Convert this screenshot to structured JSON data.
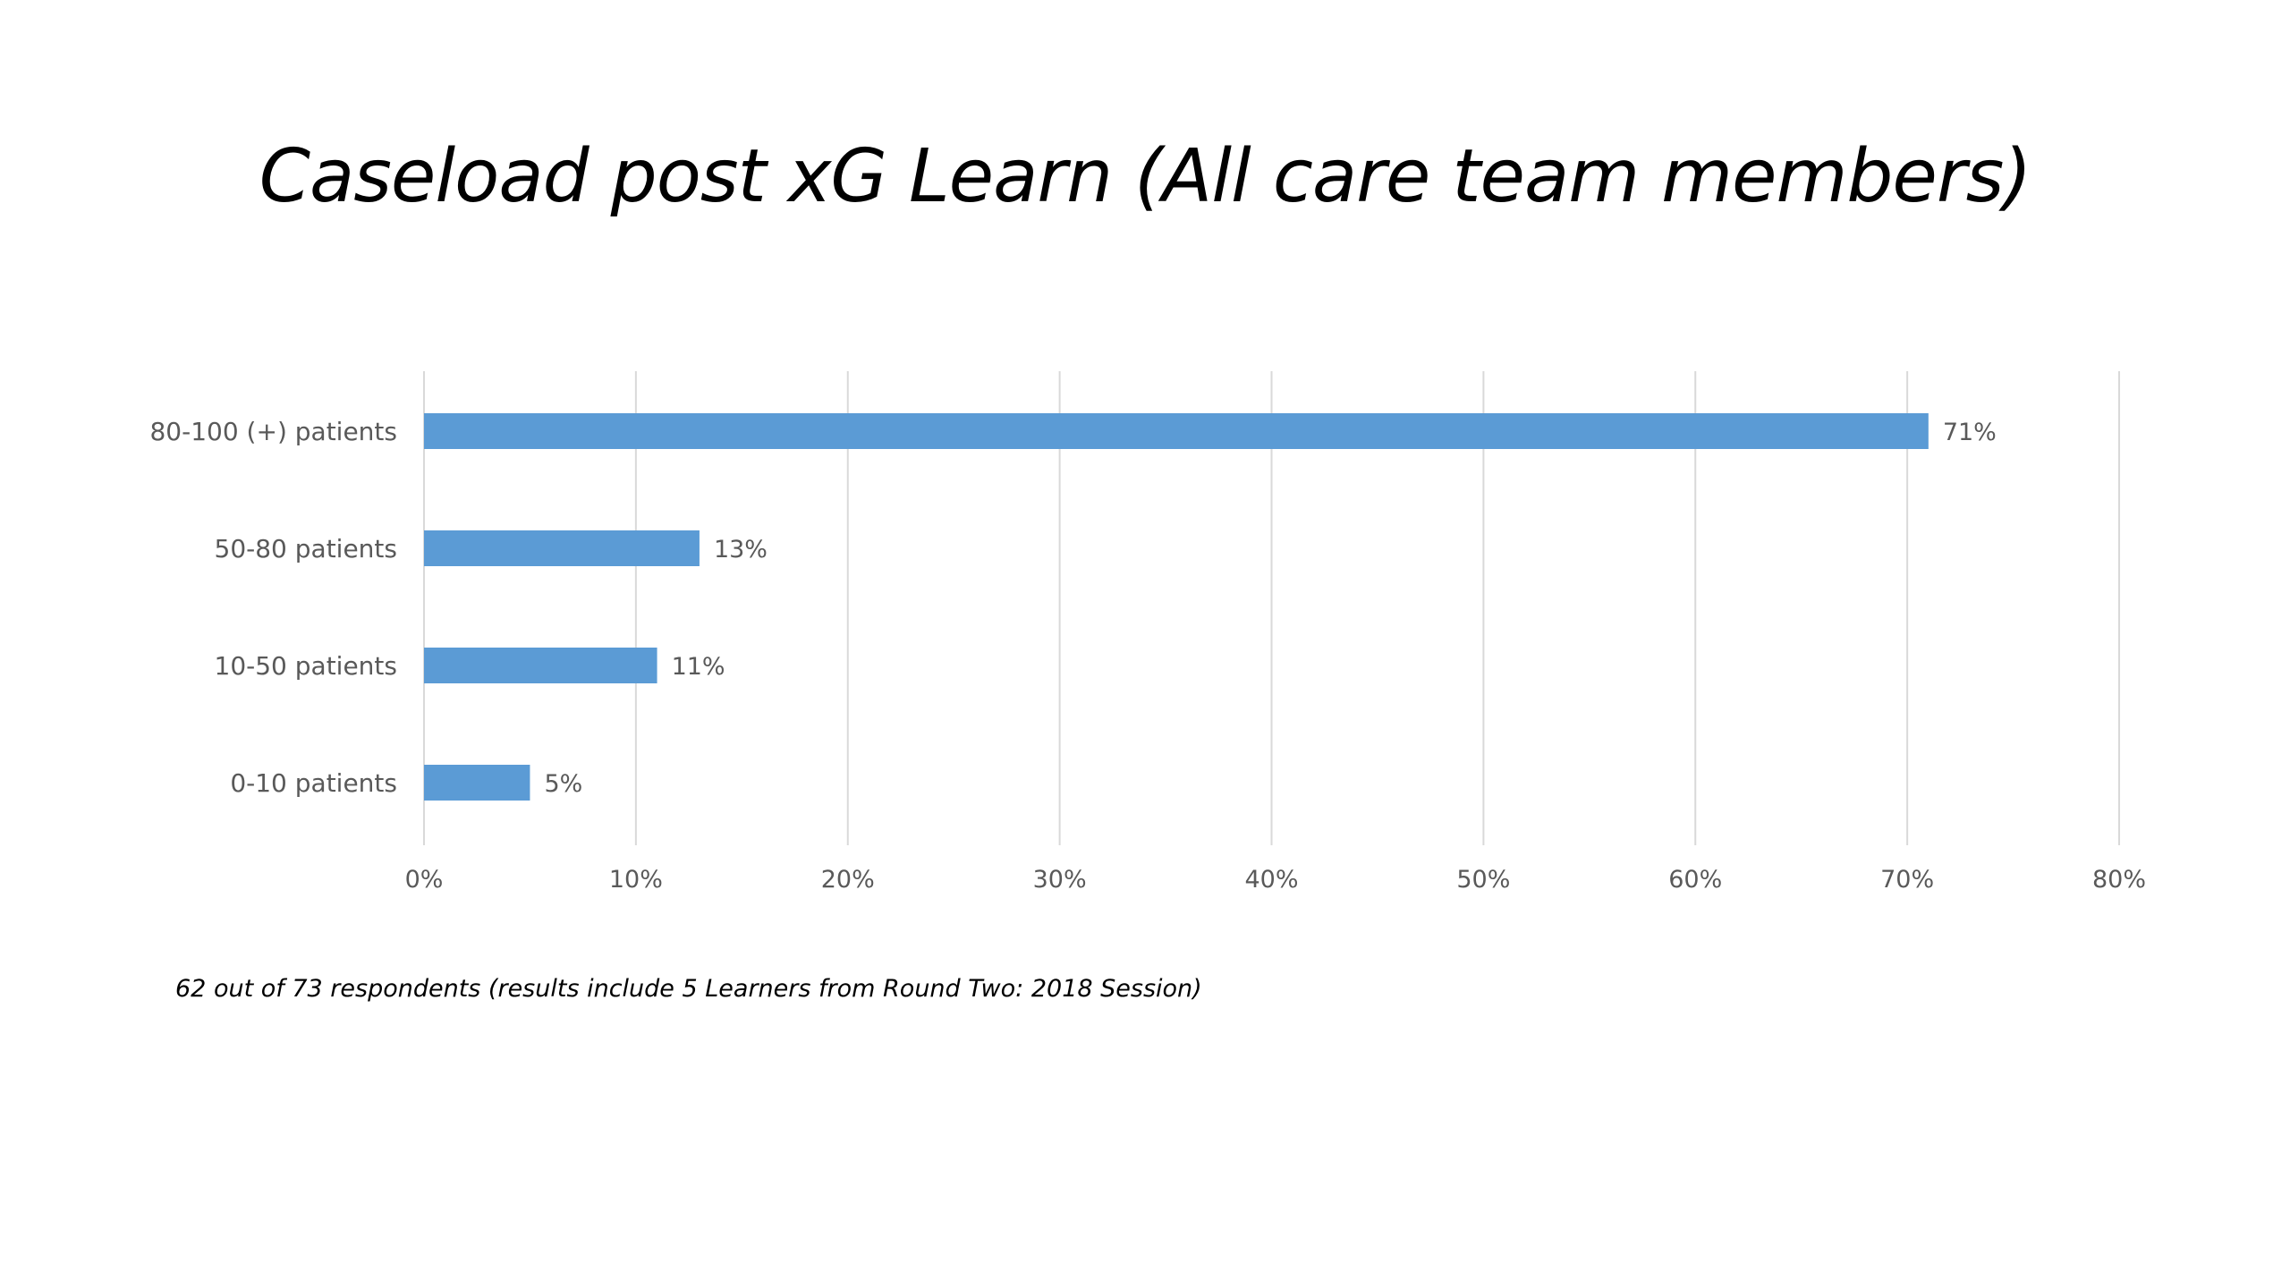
{
  "slide": {
    "title": "Caseload post xG Learn (All care team members)",
    "footnote": "62 out of 73 respondents (results include 5 Learners from Round Two: 2018 Session)"
  },
  "chart_data": {
    "type": "bar",
    "orientation": "horizontal",
    "categories": [
      "80-100 (+) patients",
      "50-80 patients",
      "10-50 patients",
      "0-10 patients"
    ],
    "values": [
      71,
      13,
      11,
      5
    ],
    "data_labels": [
      "71%",
      "13%",
      "11%",
      "5%"
    ],
    "xlim": [
      0,
      80
    ],
    "x_ticks": [
      0,
      10,
      20,
      30,
      40,
      50,
      60,
      70,
      80
    ],
    "x_tick_labels": [
      "0%",
      "10%",
      "20%",
      "30%",
      "40%",
      "50%",
      "60%",
      "70%",
      "80%"
    ],
    "grid": "vertical",
    "bar_color": "#5b9bd5",
    "title": "Caseload post xG Learn (All care team members)"
  }
}
